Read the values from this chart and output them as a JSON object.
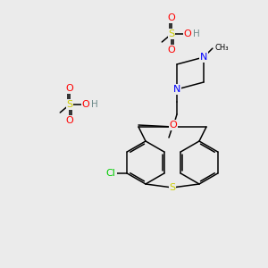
{
  "background_color": "#ebebeb",
  "figsize": [
    3.0,
    3.0
  ],
  "dpi": 100,
  "atom_colors": {
    "C": "#000000",
    "H": "#6e8b8b",
    "N": "#0000ff",
    "O": "#ff0000",
    "S": "#cccc00",
    "Cl": "#00cc00"
  },
  "bond_color": "#000000",
  "bond_lw": 1.1
}
